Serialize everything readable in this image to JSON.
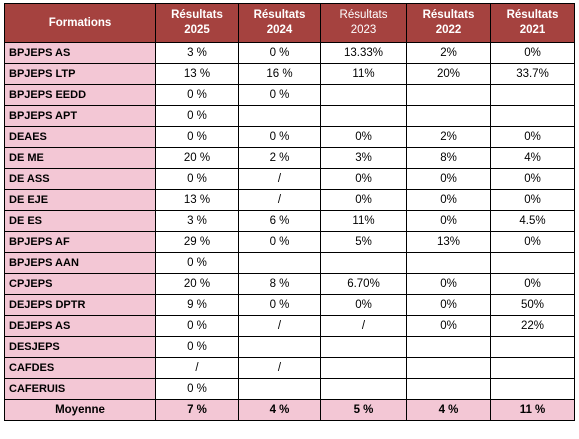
{
  "table": {
    "header_first": "Formations",
    "columns": [
      {
        "line1": "Résultats",
        "line2": "2025",
        "bold": true
      },
      {
        "line1": "Résultats",
        "line2": "2024",
        "bold": true
      },
      {
        "line1": "Résultats",
        "line2": "2023",
        "bold": false
      },
      {
        "line1": "Résultats",
        "line2": "2022",
        "bold": true
      },
      {
        "line1": "Résultats",
        "line2": "2021",
        "bold": true
      }
    ],
    "rows": [
      {
        "name": "BPJEPS AS",
        "values": [
          "3 %",
          "0 %",
          "13.33%",
          "2%",
          "0%"
        ]
      },
      {
        "name": "BPJEPS LTP",
        "values": [
          "13 %",
          "16 %",
          "11%",
          "20%",
          "33.7%"
        ]
      },
      {
        "name": "BPJEPS EEDD",
        "values": [
          "0 %",
          "0 %",
          "",
          "",
          ""
        ]
      },
      {
        "name": "BPJEPS APT",
        "values": [
          "0 %",
          "",
          "",
          "",
          ""
        ]
      },
      {
        "name": "DEAES",
        "values": [
          "0 %",
          "0 %",
          "0%",
          "2%",
          "0%"
        ]
      },
      {
        "name": "DE ME",
        "values": [
          "20 %",
          "2 %",
          "3%",
          "8%",
          "4%"
        ]
      },
      {
        "name": "DE ASS",
        "values": [
          "0 %",
          "/",
          "0%",
          "0%",
          "0%"
        ]
      },
      {
        "name": "DE EJE",
        "values": [
          "13 %",
          "/",
          "0%",
          "0%",
          "0%"
        ]
      },
      {
        "name": "DE ES",
        "values": [
          "3 %",
          "6 %",
          "11%",
          "0%",
          "4.5%"
        ]
      },
      {
        "name": "BPJEPS AF",
        "values": [
          "29 %",
          "0 %",
          "5%",
          "13%",
          "0%"
        ]
      },
      {
        "name": "BPJEPS AAN",
        "values": [
          "0 %",
          "",
          "",
          "",
          ""
        ]
      },
      {
        "name": "CPJEPS",
        "values": [
          "20 %",
          "8 %",
          "6.70%",
          "0%",
          "0%"
        ]
      },
      {
        "name": "DEJEPS DPTR",
        "values": [
          "9 %",
          "0 %",
          "0%",
          "0%",
          "50%"
        ]
      },
      {
        "name": "DEJEPS AS",
        "values": [
          "0 %",
          "/",
          "/",
          "0%",
          "22%"
        ]
      },
      {
        "name": "DESJEPS",
        "values": [
          "0 %",
          "",
          "",
          "",
          ""
        ]
      },
      {
        "name": "CAFDES",
        "values": [
          "/",
          "/",
          "",
          "",
          ""
        ]
      },
      {
        "name": "CAFERUIS",
        "values": [
          "0 %",
          "",
          "",
          "",
          ""
        ]
      }
    ],
    "footer": {
      "name": "Moyenne",
      "values": [
        "7 %",
        "4 %",
        "5 %",
        "4 %",
        "11 %"
      ]
    }
  },
  "colors": {
    "header_bg": "#a5423f",
    "name_col_bg": "#f3c7d5"
  }
}
